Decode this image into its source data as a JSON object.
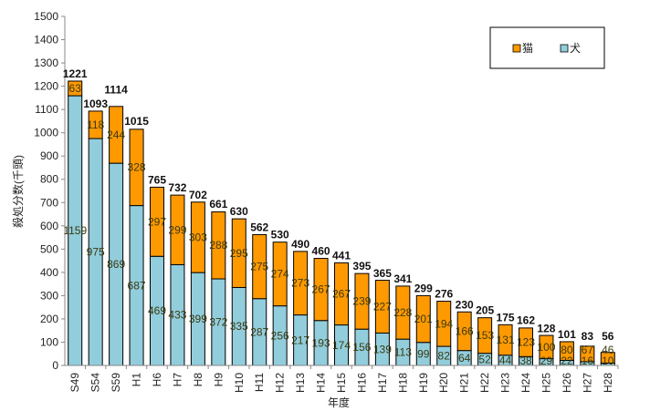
{
  "chart_data": {
    "type": "bar",
    "stacked": true,
    "title": "",
    "xlabel": "年度",
    "ylabel": "殺処分数(千頭)",
    "ylim": [
      0,
      1500
    ],
    "ytick_step": 100,
    "grid": false,
    "legend_position": "top-right",
    "categories": [
      "S49",
      "S54",
      "S59",
      "H1",
      "H6",
      "H7",
      "H8",
      "H9",
      "H10",
      "H11",
      "H12",
      "H13",
      "H14",
      "H15",
      "H16",
      "H17",
      "H18",
      "H19",
      "H20",
      "H21",
      "H22",
      "H23",
      "H24",
      "H25",
      "H26",
      "H27",
      "H28"
    ],
    "series": [
      {
        "name": "犬",
        "color": "#92CDDC",
        "values": [
          1159,
          975,
          869,
          687,
          469,
          433,
          399,
          372,
          335,
          287,
          256,
          217,
          193,
          174,
          156,
          139,
          113,
          99,
          82,
          64,
          52,
          44,
          38,
          29,
          22,
          16,
          10
        ]
      },
      {
        "name": "猫",
        "color": "#FF9900",
        "values": [
          63,
          118,
          244,
          328,
          297,
          299,
          303,
          288,
          295,
          275,
          274,
          273,
          267,
          267,
          239,
          227,
          228,
          201,
          194,
          166,
          153,
          131,
          123,
          100,
          80,
          67,
          46
        ]
      }
    ],
    "totals": [
      1221,
      1093,
      1114,
      1015,
      765,
      732,
      702,
      661,
      630,
      562,
      530,
      490,
      460,
      441,
      395,
      365,
      341,
      299,
      276,
      230,
      205,
      175,
      162,
      128,
      101,
      83,
      56
    ]
  }
}
